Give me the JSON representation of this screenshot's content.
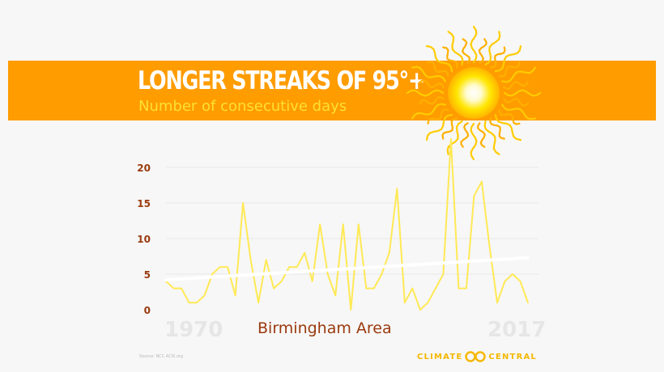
{
  "header": {
    "title": "LONGER STREAKS OF 95°+",
    "subtitle": "Number of consecutive days"
  },
  "footer": {
    "location": "Birmingham Area",
    "year_start": "1970",
    "year_end": "2017",
    "source": "Source: NCC ACIS.org",
    "logo_left": "CLIMATE",
    "logo_right": "CENTRAL"
  },
  "colors": {
    "banner": "#ff9c00",
    "subtitle": "#ffe033",
    "line": "#ffe955",
    "trend": "#ffffff",
    "tick_label": "#9a3a0e",
    "logo": "#f5b800"
  },
  "icons": [
    "sun-icon",
    "climate-central-logo-icon"
  ],
  "chart_data": {
    "type": "line",
    "title": "LONGER STREAKS OF 95°+",
    "subtitle": "Number of consecutive days",
    "xlabel": "",
    "ylabel": "",
    "xlim": [
      1970,
      2017
    ],
    "ylim": [
      0,
      22
    ],
    "yticks": [
      0,
      5,
      10,
      15,
      20
    ],
    "grid": true,
    "legend": "none",
    "x": [
      1970,
      1971,
      1972,
      1973,
      1974,
      1975,
      1976,
      1977,
      1978,
      1979,
      1980,
      1981,
      1982,
      1983,
      1984,
      1985,
      1986,
      1987,
      1988,
      1989,
      1990,
      1991,
      1992,
      1993,
      1994,
      1995,
      1996,
      1997,
      1998,
      1999,
      2000,
      2001,
      2002,
      2003,
      2004,
      2005,
      2006,
      2007,
      2008,
      2009,
      2010,
      2011,
      2012,
      2013,
      2014,
      2015,
      2016,
      2017
    ],
    "series": [
      {
        "values": [
          4,
          3,
          3,
          1,
          1,
          2,
          5,
          6,
          6,
          2,
          15,
          7,
          1,
          7,
          3,
          4,
          6,
          6,
          8,
          4,
          12,
          5,
          2,
          12,
          0,
          12,
          3,
          3,
          5,
          8,
          17,
          1,
          3,
          0,
          1,
          3,
          5,
          24,
          3,
          3,
          16,
          18,
          9,
          1,
          4,
          5,
          4,
          1
        ]
      }
    ],
    "trend": {
      "start": 4.2,
      "end": 7.3
    }
  }
}
